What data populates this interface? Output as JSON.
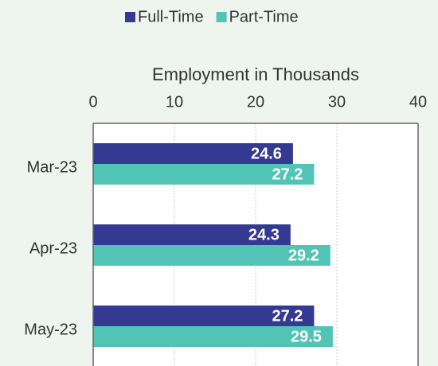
{
  "chart_data": {
    "type": "bar",
    "orientation": "horizontal",
    "xlabel": "Employment in Thousands",
    "categories": [
      "Mar-23",
      "Apr-23",
      "May-23"
    ],
    "series": [
      {
        "name": "Full-Time",
        "color": "#343a92",
        "values": [
          24.6,
          24.3,
          27.2
        ]
      },
      {
        "name": "Part-Time",
        "color": "#52c4b5",
        "values": [
          27.2,
          29.2,
          29.5
        ]
      }
    ],
    "xlim": [
      0,
      40
    ],
    "xticks": [
      0,
      10,
      20,
      30,
      40
    ],
    "grid": true,
    "legend": "top"
  }
}
